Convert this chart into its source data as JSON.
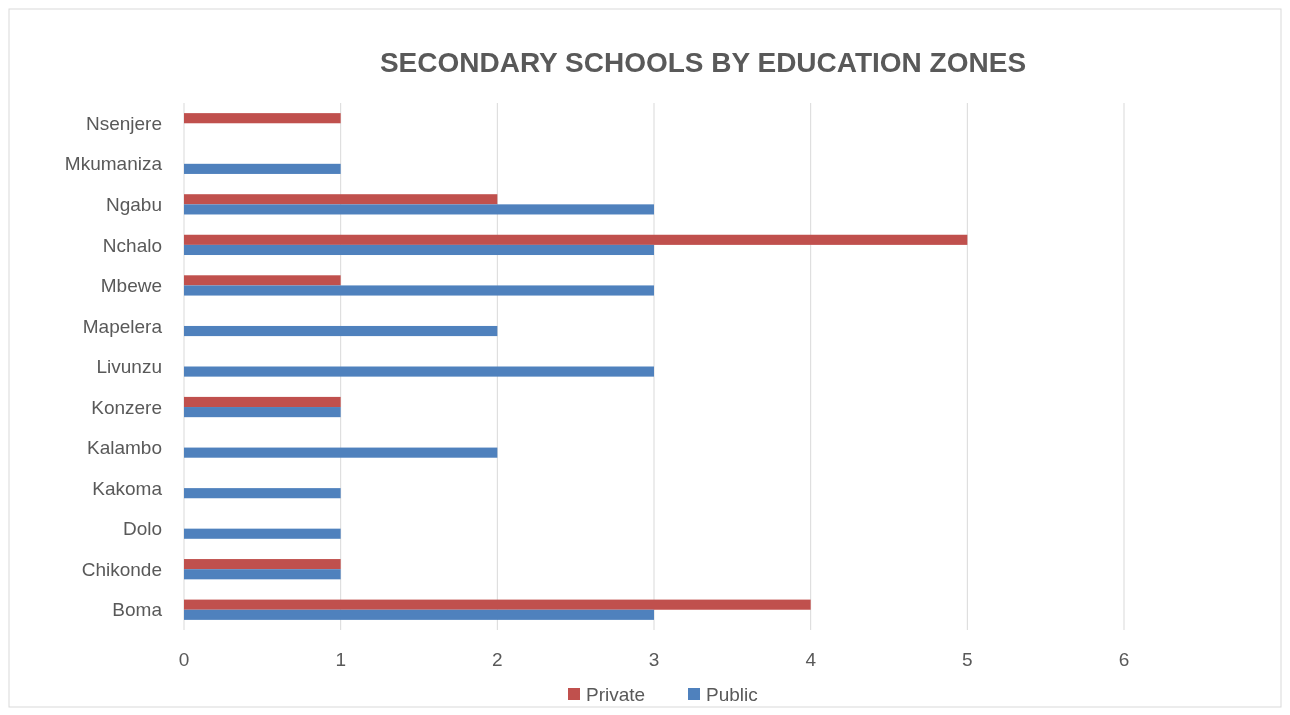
{
  "chart_data": {
    "type": "bar",
    "orientation": "horizontal",
    "title": "SECONDARY SCHOOLS BY EDUCATION ZONES",
    "categories": [
      "Nsenjere",
      "Mkumaniza",
      "Ngabu",
      "Nchalo",
      "Mbewe",
      "Mapelera",
      "Livunzu",
      "Konzere",
      "Kalambo",
      "Kakoma",
      "Dolo",
      "Chikonde",
      "Boma"
    ],
    "series": [
      {
        "name": "Private",
        "color": "#c0504d",
        "values": [
          1,
          null,
          2,
          5,
          1,
          null,
          null,
          1,
          null,
          null,
          null,
          1,
          4
        ]
      },
      {
        "name": "Public",
        "color": "#4f81bd",
        "values": [
          null,
          1,
          3,
          3,
          3,
          2,
          3,
          1,
          2,
          1,
          1,
          1,
          3
        ]
      }
    ],
    "xlim": [
      0,
      6
    ],
    "xticks": [
      0,
      1,
      2,
      3,
      4,
      5,
      6
    ],
    "grid": "x",
    "legend": "bottom"
  }
}
